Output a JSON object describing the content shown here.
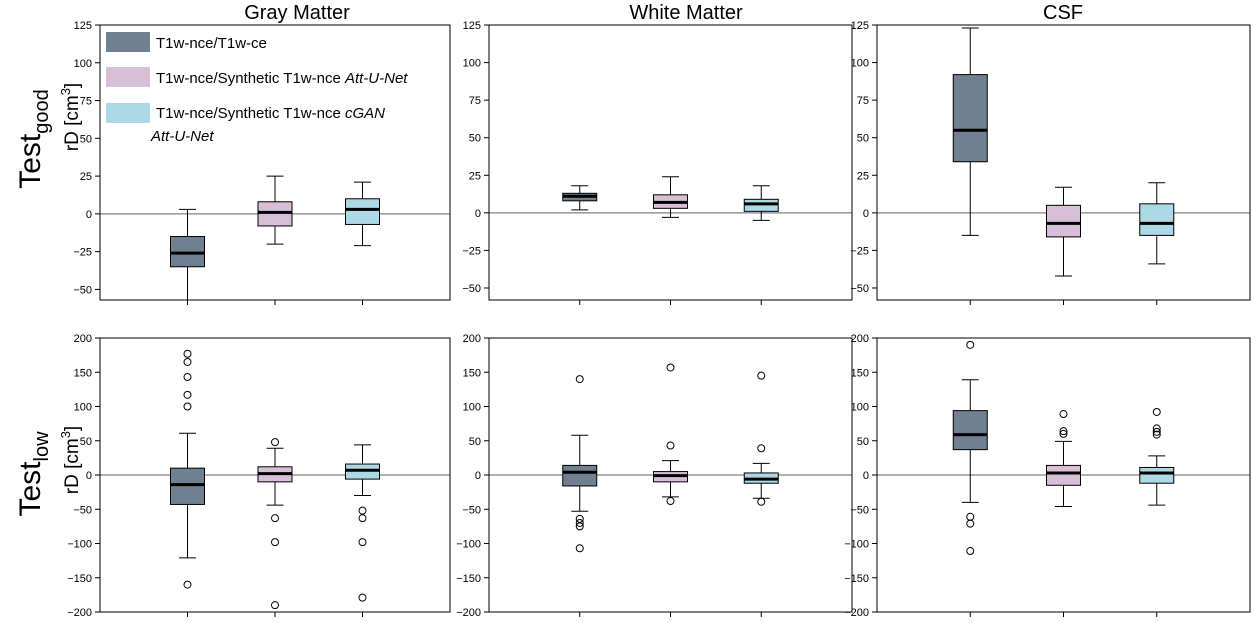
{
  "figure": {
    "column_titles": [
      "Gray Matter",
      "White Matter",
      "CSF"
    ],
    "row_labels": [
      {
        "main": "Test",
        "sub": "good",
        "ylabel_text": "rD [cm",
        "ylabel_sup": "3",
        "ylabel_close": "]"
      },
      {
        "main": "Test",
        "sub": "low",
        "ylabel_text": "rD [cm",
        "ylabel_sup": "3",
        "ylabel_close": "]"
      }
    ],
    "legend": [
      {
        "plain": "T1w-nce/T1w-ce",
        "italic": "",
        "italic2": ""
      },
      {
        "plain": "T1w-nce/Synthetic T1w-nce ",
        "italic": "Att-U-Net",
        "italic2": ""
      },
      {
        "plain": "T1w-nce/Synthetic T1w-nce ",
        "italic": "cGAN",
        "italic2": "Att-U-Net"
      }
    ],
    "series_colors": [
      "#708090",
      "#d8bfd8",
      "#add8e6"
    ]
  },
  "chart_data": [
    {
      "type": "box",
      "row": 0,
      "col": 0,
      "ylim": [
        -57,
        125
      ],
      "yticks": [
        -50,
        -25,
        0,
        25,
        50,
        75,
        100,
        125
      ],
      "boxes": [
        {
          "q1": -35,
          "median": -26,
          "q3": -15,
          "whislo": -57,
          "whishi": 3,
          "fliers": []
        },
        {
          "q1": -8,
          "median": 1,
          "q3": 8,
          "whislo": -20,
          "whishi": 25,
          "fliers": []
        },
        {
          "q1": -7,
          "median": 3,
          "q3": 10,
          "whislo": -21,
          "whishi": 21,
          "fliers": []
        }
      ]
    },
    {
      "type": "box",
      "row": 0,
      "col": 1,
      "ylim": [
        -58,
        125
      ],
      "yticks": [
        -50,
        -25,
        0,
        25,
        50,
        75,
        100,
        125
      ],
      "boxes": [
        {
          "q1": 8,
          "median": 11,
          "q3": 13,
          "whislo": 2,
          "whishi": 18,
          "fliers": []
        },
        {
          "q1": 3,
          "median": 7,
          "q3": 12,
          "whislo": -3,
          "whishi": 24,
          "fliers": []
        },
        {
          "q1": 1,
          "median": 6,
          "q3": 9,
          "whislo": -5,
          "whishi": 18,
          "fliers": []
        }
      ]
    },
    {
      "type": "box",
      "row": 0,
      "col": 2,
      "ylim": [
        -58,
        125
      ],
      "yticks": [
        -50,
        -25,
        0,
        25,
        50,
        75,
        100,
        125
      ],
      "boxes": [
        {
          "q1": 34,
          "median": 55,
          "q3": 92,
          "whislo": -15,
          "whishi": 123,
          "fliers": []
        },
        {
          "q1": -16,
          "median": -7,
          "q3": 5,
          "whislo": -42,
          "whishi": 17,
          "fliers": []
        },
        {
          "q1": -15,
          "median": -7,
          "q3": 6,
          "whislo": -34,
          "whishi": 20,
          "fliers": []
        }
      ]
    },
    {
      "type": "box",
      "row": 1,
      "col": 0,
      "ylim": [
        -200,
        200
      ],
      "yticks": [
        -200,
        -150,
        -100,
        -50,
        0,
        50,
        100,
        150,
        200
      ],
      "boxes": [
        {
          "q1": -43,
          "median": -14,
          "q3": 10,
          "whislo": -121,
          "whishi": 61,
          "fliers": [
            -160,
            177,
            165,
            143,
            117,
            100
          ]
        },
        {
          "q1": -10,
          "median": 2,
          "q3": 12,
          "whislo": -44,
          "whishi": 39,
          "fliers": [
            48,
            -63,
            -98,
            -190
          ]
        },
        {
          "q1": -6,
          "median": 7,
          "q3": 16,
          "whislo": -30,
          "whishi": 44,
          "fliers": [
            -52,
            -63,
            -98,
            -179
          ]
        }
      ]
    },
    {
      "type": "box",
      "row": 1,
      "col": 1,
      "ylim": [
        -200,
        200
      ],
      "yticks": [
        -200,
        -150,
        -100,
        -50,
        0,
        50,
        100,
        150,
        200
      ],
      "boxes": [
        {
          "q1": -16,
          "median": 4,
          "q3": 14,
          "whislo": -53,
          "whishi": 58,
          "fliers": [
            140,
            -64,
            -70,
            -75,
            -107
          ]
        },
        {
          "q1": -10,
          "median": -1,
          "q3": 5,
          "whislo": -32,
          "whishi": 21,
          "fliers": [
            157,
            43,
            -38
          ]
        },
        {
          "q1": -12,
          "median": -6,
          "q3": 3,
          "whislo": -34,
          "whishi": 17,
          "fliers": [
            145,
            39,
            -39
          ]
        }
      ]
    },
    {
      "type": "box",
      "row": 1,
      "col": 2,
      "ylim": [
        -200,
        200
      ],
      "yticks": [
        -200,
        -150,
        -100,
        -50,
        0,
        50,
        100,
        150,
        200
      ],
      "boxes": [
        {
          "q1": 37,
          "median": 59,
          "q3": 94,
          "whislo": -40,
          "whishi": 139,
          "fliers": [
            190,
            -61,
            -71,
            -111
          ]
        },
        {
          "q1": -15,
          "median": 3,
          "q3": 14,
          "whislo": -46,
          "whishi": 49,
          "fliers": [
            89,
            64,
            60
          ]
        },
        {
          "q1": -12,
          "median": 3,
          "q3": 11,
          "whislo": -44,
          "whishi": 28,
          "fliers": [
            92,
            68,
            63,
            59
          ]
        }
      ]
    }
  ]
}
